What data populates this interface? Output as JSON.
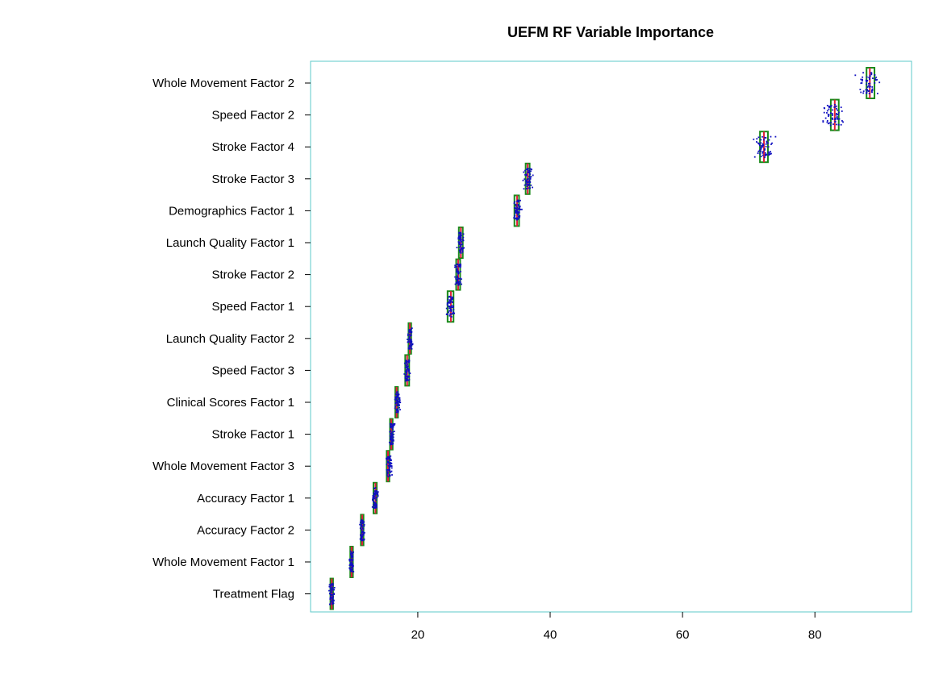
{
  "chart_data": {
    "type": "box",
    "title": "UEFM RF Variable Importance",
    "xlabel": "",
    "ylabel": "",
    "xlim": [
      3.8,
      94.6
    ],
    "xticks": [
      20,
      40,
      60,
      80
    ],
    "grid": false,
    "legend": "none",
    "colors": {
      "frame": "#5cc8c8",
      "box": "#1a8a1a",
      "median": "#e0203a",
      "points": "#1010c0"
    },
    "variables": [
      {
        "label": "Whole Movement Factor 2",
        "q1": 87.8,
        "median": 88.3,
        "q3": 89.0,
        "min": 85.5,
        "max": 90.6
      },
      {
        "label": "Speed Factor 2",
        "q1": 82.4,
        "median": 83.0,
        "q3": 83.6,
        "min": 80.5,
        "max": 85.0
      },
      {
        "label": "Stroke Factor 4",
        "q1": 71.7,
        "median": 72.3,
        "q3": 72.9,
        "min": 70.2,
        "max": 74.2
      },
      {
        "label": "Stroke Factor 3",
        "q1": 36.3,
        "median": 36.6,
        "q3": 36.9,
        "min": 35.8,
        "max": 37.6
      },
      {
        "label": "Demographics Factor 1",
        "q1": 34.6,
        "median": 35.0,
        "q3": 35.3,
        "min": 34.3,
        "max": 35.8
      },
      {
        "label": "Launch Quality Factor 1",
        "q1": 26.2,
        "median": 26.5,
        "q3": 26.8,
        "min": 25.8,
        "max": 27.1
      },
      {
        "label": "Stroke Factor 2",
        "q1": 25.8,
        "median": 26.1,
        "q3": 26.4,
        "min": 25.4,
        "max": 26.8
      },
      {
        "label": "Speed Factor 1",
        "q1": 24.5,
        "median": 25.0,
        "q3": 25.4,
        "min": 24.0,
        "max": 25.8
      },
      {
        "label": "Launch Quality Factor 2",
        "q1": 18.6,
        "median": 18.8,
        "q3": 19.0,
        "min": 18.3,
        "max": 19.4
      },
      {
        "label": "Speed Factor 3",
        "q1": 18.1,
        "median": 18.4,
        "q3": 18.7,
        "min": 17.7,
        "max": 19.0
      },
      {
        "label": "Clinical Scores Factor 1",
        "q1": 16.6,
        "median": 16.8,
        "q3": 17.0,
        "min": 16.2,
        "max": 17.5
      },
      {
        "label": "Stroke Factor 1",
        "q1": 15.8,
        "median": 16.0,
        "q3": 16.2,
        "min": 15.5,
        "max": 16.6
      },
      {
        "label": "Whole Movement Factor 3",
        "q1": 15.3,
        "median": 15.5,
        "q3": 15.7,
        "min": 15.0,
        "max": 16.3
      },
      {
        "label": "Accuracy Factor 1",
        "q1": 13.3,
        "median": 13.6,
        "q3": 13.8,
        "min": 12.9,
        "max": 14.2
      },
      {
        "label": "Accuracy Factor 2",
        "q1": 11.4,
        "median": 11.6,
        "q3": 11.8,
        "min": 11.1,
        "max": 12.1
      },
      {
        "label": "Whole Movement Factor 1",
        "q1": 9.8,
        "median": 10.0,
        "q3": 10.2,
        "min": 9.5,
        "max": 10.5
      },
      {
        "label": "Treatment Flag",
        "q1": 6.8,
        "median": 7.0,
        "q3": 7.2,
        "min": 6.5,
        "max": 7.5
      }
    ]
  }
}
